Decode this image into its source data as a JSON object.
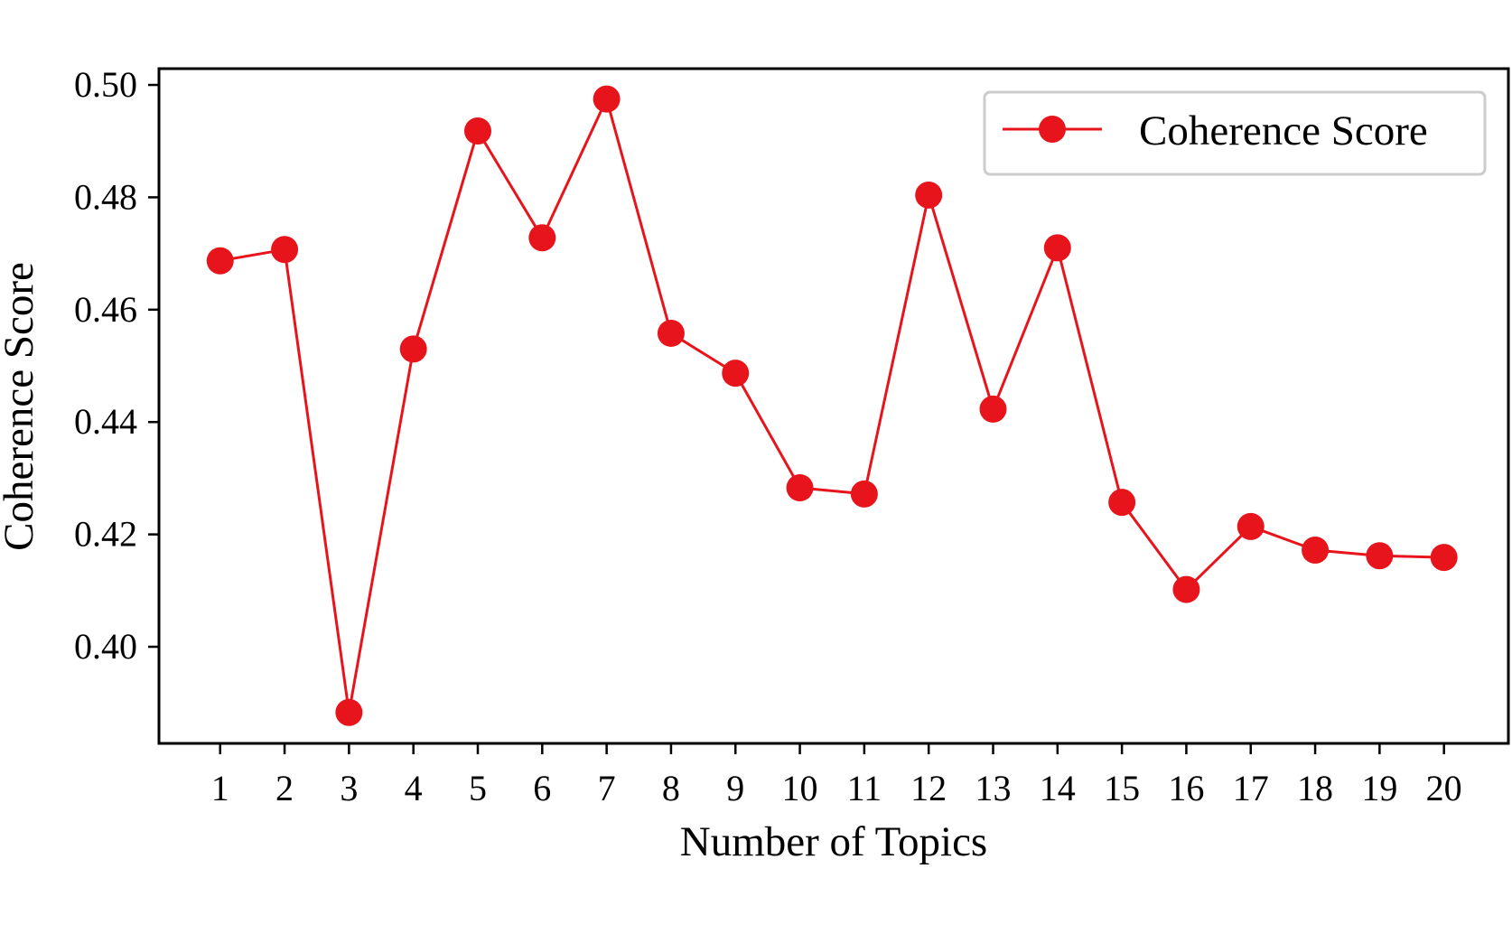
{
  "chart_data": {
    "type": "line",
    "title": "",
    "xlabel": "Number of Topics",
    "ylabel": "Coherence Score",
    "x": [
      1,
      2,
      3,
      4,
      5,
      6,
      7,
      8,
      9,
      10,
      11,
      12,
      13,
      14,
      15,
      16,
      17,
      18,
      19,
      20
    ],
    "x_tick_labels": [
      "1",
      "2",
      "3",
      "4",
      "5",
      "6",
      "7",
      "8",
      "9",
      "10",
      "11",
      "12",
      "13",
      "14",
      "15",
      "16",
      "17",
      "18",
      "19",
      "20"
    ],
    "y_ticks": [
      0.4,
      0.42,
      0.44,
      0.46,
      0.48,
      0.5
    ],
    "y_tick_labels": [
      "0.40",
      "0.42",
      "0.44",
      "0.46",
      "0.48",
      "0.50"
    ],
    "xlim": [
      0.05,
      21.0
    ],
    "ylim": [
      0.3828,
      0.5029
    ],
    "grid": false,
    "legend_position": "top-right",
    "series": [
      {
        "name": "Coherence Score",
        "color": "#e8141c",
        "marker": "circle",
        "values": [
          0.4687,
          0.4707,
          0.3883,
          0.453,
          0.4918,
          0.4728,
          0.4975,
          0.4558,
          0.4487,
          0.4283,
          0.4272,
          0.4804,
          0.4423,
          0.471,
          0.4257,
          0.4102,
          0.4214,
          0.4172,
          0.4162,
          0.4159
        ]
      }
    ]
  }
}
